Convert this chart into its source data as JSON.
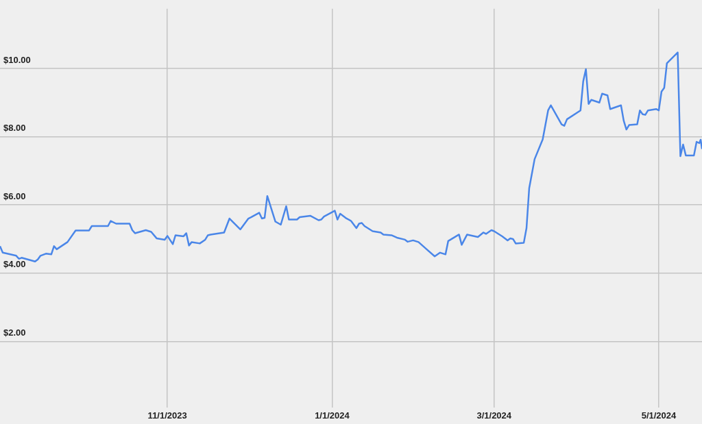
{
  "chart_data": {
    "type": "line",
    "xlim": [
      "2023-08-31",
      "2024-05-17"
    ],
    "ylim": [
      0.05,
      11.75
    ],
    "xticks": [
      {
        "value": "2023-11-01",
        "label": "11/1/2023"
      },
      {
        "value": "2024-01-01",
        "label": "1/1/2024"
      },
      {
        "value": "2024-03-01",
        "label": "3/1/2024"
      },
      {
        "value": "2024-05-01",
        "label": "5/1/2024"
      }
    ],
    "yticks": [
      {
        "value": 2,
        "label": "$2.00"
      },
      {
        "value": 4,
        "label": "$4.00"
      },
      {
        "value": 6,
        "label": "$6.00"
      },
      {
        "value": 8,
        "label": "$8.00"
      },
      {
        "value": 10,
        "label": "$10.00"
      }
    ],
    "grid": true,
    "x": [
      "2023-08-31",
      "2023-09-01",
      "2023-09-06",
      "2023-09-07",
      "2023-09-08",
      "2023-09-13",
      "2023-09-14",
      "2023-09-15",
      "2023-09-17",
      "2023-09-19",
      "2023-09-20",
      "2023-09-21",
      "2023-09-25",
      "2023-09-28",
      "2023-10-03",
      "2023-10-04",
      "2023-10-10",
      "2023-10-11",
      "2023-10-13",
      "2023-10-18",
      "2023-10-19",
      "2023-10-20",
      "2023-10-24",
      "2023-10-26",
      "2023-10-28",
      "2023-10-31",
      "2023-11-01",
      "2023-11-03",
      "2023-11-04",
      "2023-11-07",
      "2023-11-08",
      "2023-11-09",
      "2023-11-10",
      "2023-11-13",
      "2023-11-15",
      "2023-11-16",
      "2023-11-17",
      "2023-11-22",
      "2023-11-24",
      "2023-11-28",
      "2023-12-01",
      "2023-12-02",
      "2023-12-05",
      "2023-12-06",
      "2023-12-07",
      "2023-12-08",
      "2023-12-11",
      "2023-12-13",
      "2023-12-15",
      "2023-12-16",
      "2023-12-19",
      "2023-12-20",
      "2023-12-22",
      "2023-12-24",
      "2023-12-27",
      "2023-12-28",
      "2023-12-29",
      "2024-01-02",
      "2024-01-03",
      "2024-01-04",
      "2024-01-06",
      "2024-01-08",
      "2024-01-10",
      "2024-01-11",
      "2024-01-12",
      "2024-01-13",
      "2024-01-16",
      "2024-01-19",
      "2024-01-20",
      "2024-01-23",
      "2024-01-25",
      "2024-01-28",
      "2024-01-29",
      "2024-01-31",
      "2024-02-02",
      "2024-02-05",
      "2024-02-08",
      "2024-02-10",
      "2024-02-12",
      "2024-02-13",
      "2024-02-17",
      "2024-02-18",
      "2024-02-20",
      "2024-02-24",
      "2024-02-26",
      "2024-02-27",
      "2024-02-29",
      "2024-03-01",
      "2024-03-04",
      "2024-03-06",
      "2024-03-07",
      "2024-03-08",
      "2024-03-09",
      "2024-03-12",
      "2024-03-13",
      "2024-03-14",
      "2024-03-16",
      "2024-03-19",
      "2024-03-21",
      "2024-03-22",
      "2024-03-26",
      "2024-03-27",
      "2024-03-28",
      "2024-04-02",
      "2024-04-03",
      "2024-04-04",
      "2024-04-05",
      "2024-04-06",
      "2024-04-09",
      "2024-04-10",
      "2024-04-12",
      "2024-04-13",
      "2024-04-17",
      "2024-04-18",
      "2024-04-19",
      "2024-04-20",
      "2024-04-23",
      "2024-04-24",
      "2024-04-25",
      "2024-04-26",
      "2024-04-27",
      "2024-04-30",
      "2024-05-01",
      "2024-05-02",
      "2024-05-03",
      "2024-05-04",
      "2024-05-08",
      "2024-05-09",
      "2024-05-10",
      "2024-05-11",
      "2024-05-14",
      "2024-05-15",
      "2024-05-16",
      "2024-05-16T12:00",
      "2024-05-17"
    ],
    "series": [
      {
        "color": "#4a86e8",
        "values": [
          4.79,
          4.6,
          4.51,
          4.42,
          4.45,
          4.34,
          4.4,
          4.51,
          4.57,
          4.55,
          4.79,
          4.7,
          4.91,
          5.25,
          5.25,
          5.38,
          5.38,
          5.53,
          5.45,
          5.45,
          5.26,
          5.17,
          5.26,
          5.21,
          5.02,
          4.98,
          5.09,
          4.85,
          5.11,
          5.08,
          5.17,
          4.81,
          4.91,
          4.87,
          4.98,
          5.11,
          5.13,
          5.19,
          5.6,
          5.28,
          5.6,
          5.64,
          5.77,
          5.6,
          5.62,
          6.26,
          5.51,
          5.42,
          5.96,
          5.57,
          5.57,
          5.64,
          5.66,
          5.68,
          5.55,
          5.57,
          5.66,
          5.83,
          5.57,
          5.74,
          5.62,
          5.53,
          5.32,
          5.45,
          5.47,
          5.38,
          5.23,
          5.19,
          5.13,
          5.11,
          5.04,
          4.98,
          4.92,
          4.96,
          4.91,
          4.7,
          4.49,
          4.6,
          4.55,
          4.94,
          5.13,
          4.83,
          5.13,
          5.06,
          5.19,
          5.15,
          5.26,
          5.23,
          5.08,
          4.96,
          5.02,
          5.0,
          4.87,
          4.89,
          5.32,
          6.49,
          7.34,
          7.92,
          8.77,
          8.92,
          8.36,
          8.32,
          8.51,
          8.77,
          9.62,
          9.98,
          8.96,
          9.08,
          9.0,
          9.26,
          9.21,
          8.81,
          8.92,
          8.47,
          8.21,
          8.34,
          8.36,
          8.77,
          8.66,
          8.64,
          8.77,
          8.81,
          8.77,
          9.32,
          9.43,
          10.15,
          10.47,
          7.43,
          7.77,
          7.45,
          7.45,
          7.85,
          7.81,
          7.91,
          7.64
        ]
      }
    ]
  }
}
